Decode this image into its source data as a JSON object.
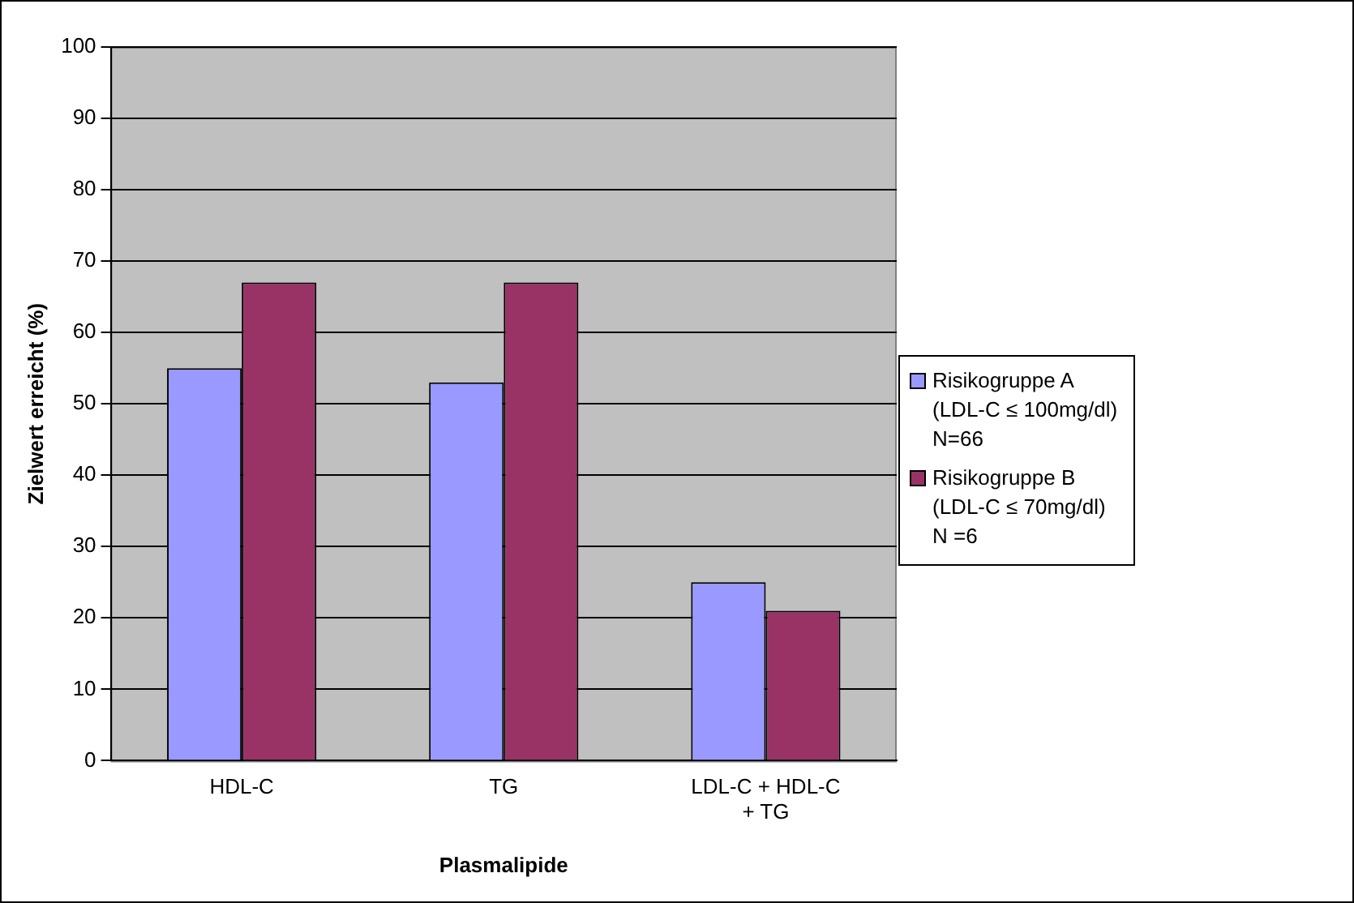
{
  "chart_data": {
    "type": "bar",
    "xlabel": "Plasmalipide",
    "ylabel": "Zielwert erreicht (%)",
    "categories": [
      "HDL-C",
      "TG",
      "LDL-C + HDL-C + TG"
    ],
    "series": [
      {
        "name": "Risikogruppe A\n(LDL-C ≤ 100mg/dl)\nN=66",
        "color": "#9999ff",
        "values": [
          55,
          53,
          25
        ]
      },
      {
        "name": "Risikogruppe B\n(LDL-C ≤ 70mg/dl)\nN =6",
        "color": "#993366",
        "values": [
          67,
          67,
          21
        ]
      }
    ],
    "ylim": [
      0,
      100
    ],
    "yticks": [
      0,
      10,
      20,
      30,
      40,
      50,
      60,
      70,
      80,
      90,
      100
    ],
    "grid": "y",
    "legend": "right"
  }
}
